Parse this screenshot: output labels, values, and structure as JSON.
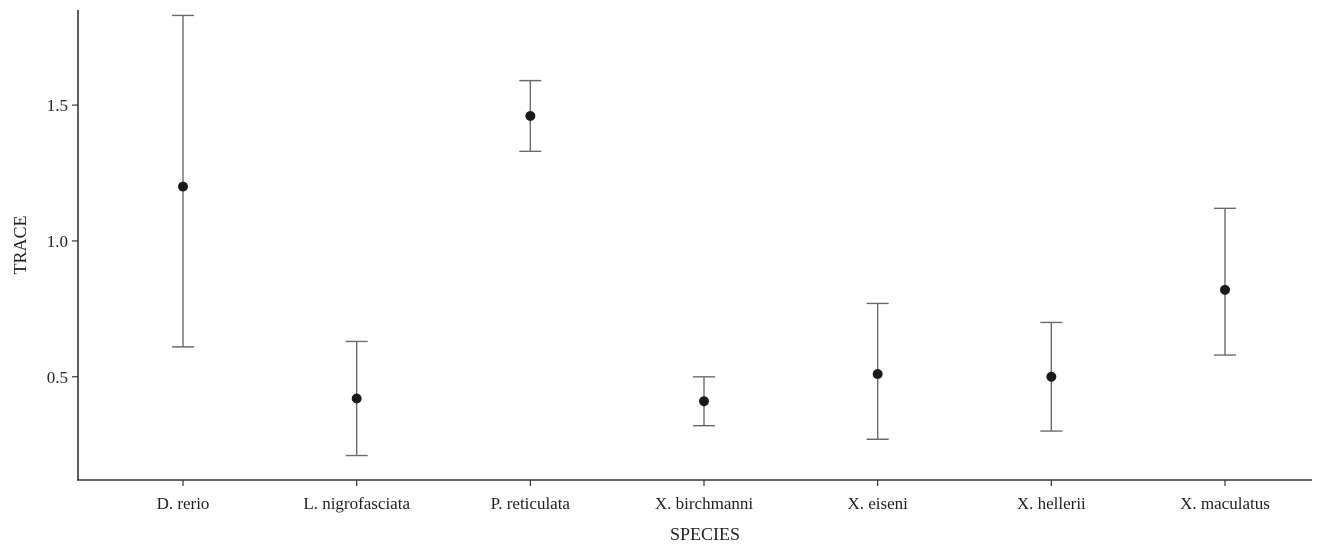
{
  "chart_data": {
    "type": "scatter",
    "xlabel": "SPECIES",
    "ylabel": "TRACE",
    "ylim": [
      0.12,
      1.85
    ],
    "y_ticks": [
      {
        "value": 0.5,
        "label": "0.5"
      },
      {
        "value": 1.0,
        "label": "1.0"
      },
      {
        "value": 1.5,
        "label": "1.5"
      }
    ],
    "grid": false,
    "categories": [
      "D. rerio",
      "L. nigrofasciata",
      "P. reticulata",
      "X. birchmanni",
      "X. eiseni",
      "X. hellerii",
      "X. maculatus"
    ],
    "points": [
      {
        "category": "D. rerio",
        "y": 1.2,
        "lower": 0.61,
        "upper": 1.83
      },
      {
        "category": "L. nigrofasciata",
        "y": 0.42,
        "lower": 0.21,
        "upper": 0.63
      },
      {
        "category": "P. reticulata",
        "y": 1.46,
        "lower": 1.33,
        "upper": 1.59
      },
      {
        "category": "X. birchmanni",
        "y": 0.41,
        "lower": 0.32,
        "upper": 0.5
      },
      {
        "category": "X. eiseni",
        "y": 0.51,
        "lower": 0.27,
        "upper": 0.77
      },
      {
        "category": "X. hellerii",
        "y": 0.5,
        "lower": 0.3,
        "upper": 0.7
      },
      {
        "category": "X. maculatus",
        "y": 0.82,
        "lower": 0.58,
        "upper": 1.12
      }
    ],
    "colors": {
      "point": "#1a1a1a",
      "errorbar": "#6a6a6a",
      "axis": "#333333"
    }
  }
}
